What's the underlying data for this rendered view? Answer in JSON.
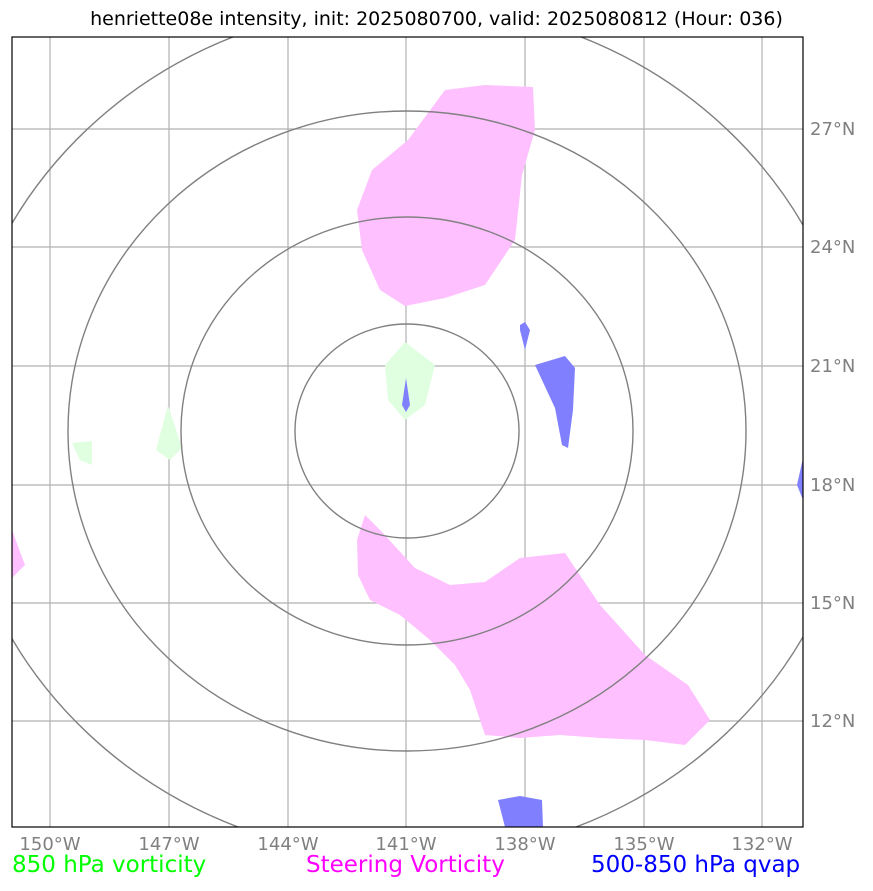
{
  "title": "henriette08e intensity, init: 2025080700, valid: 2025080812 (Hour: 036)",
  "longitude_labels": [
    "150°W",
    "147°W",
    "144°W",
    "141°W",
    "138°W",
    "135°W",
    "132°W"
  ],
  "latitude_labels": [
    "27°N",
    "24°N",
    "21°N",
    "18°N",
    "15°N",
    "12°N"
  ],
  "legend": [
    {
      "label": "850 hPa vorticity",
      "color": "#00ff00"
    },
    {
      "label": "Steering Vorticity",
      "color": "#ff00ff"
    },
    {
      "label": "500-850 hPa qvap",
      "color": "#0000ff"
    }
  ],
  "fill_colors": {
    "vorticity_850": "#e0ffe0",
    "steering_vorticity": "#ffc0ff",
    "qvap": "#8080ff"
  },
  "range_rings": {
    "count": 4,
    "color": "#808080"
  },
  "gridline_color": "#b0b0b0"
}
